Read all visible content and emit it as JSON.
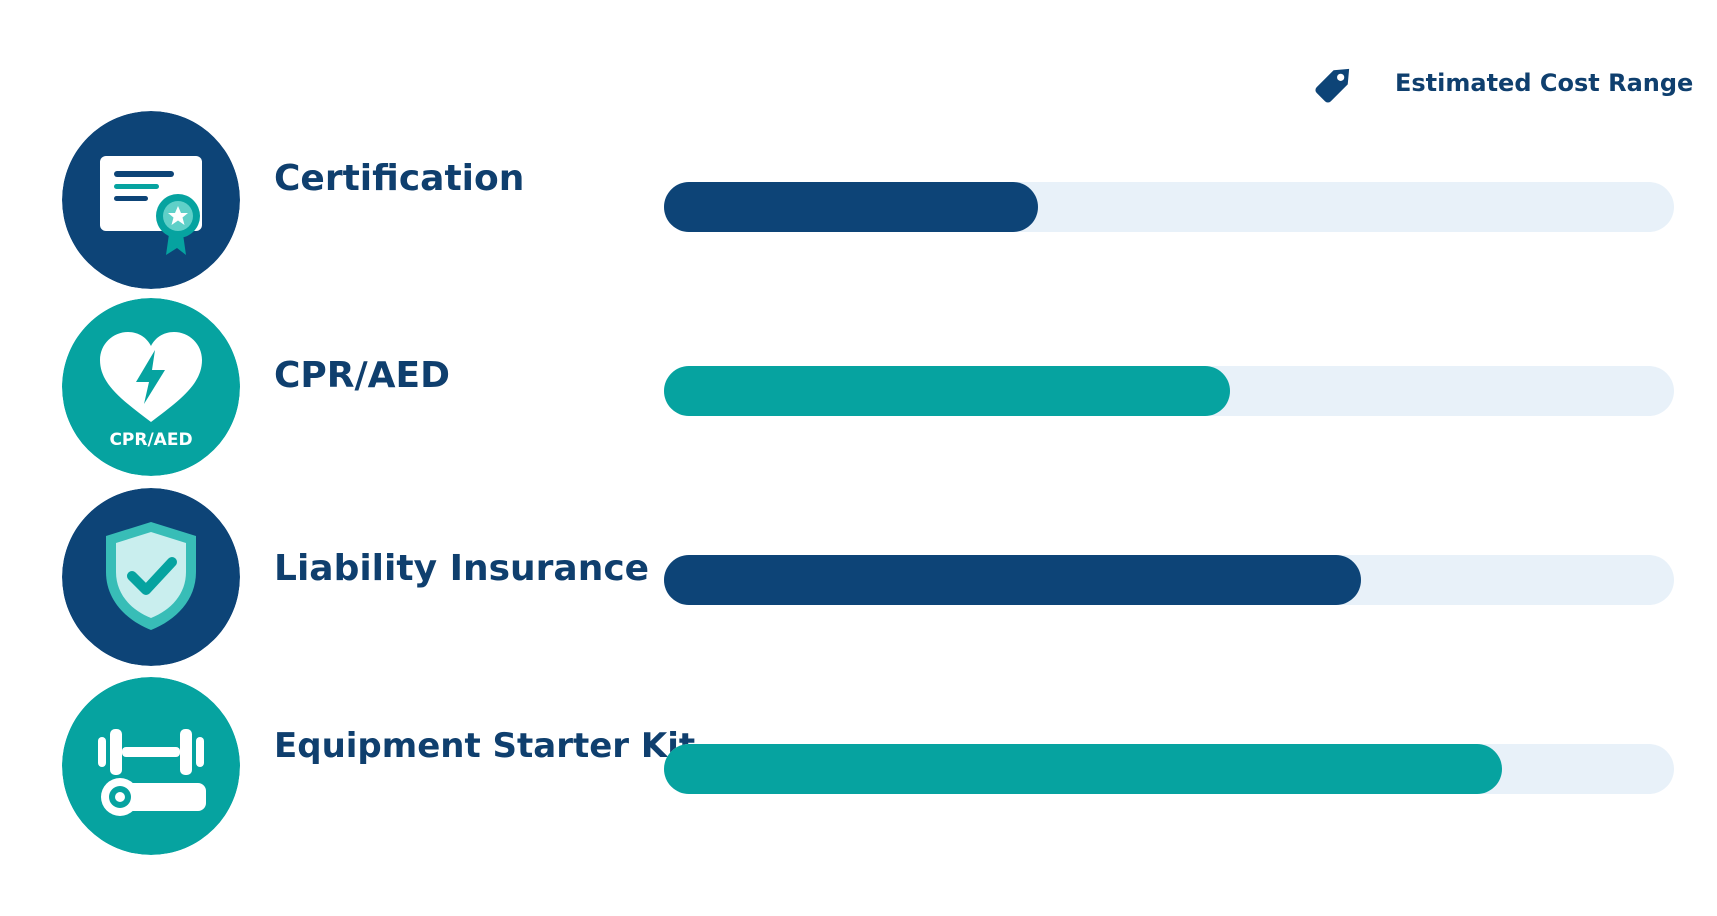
{
  "legend": {
    "label": "Estimated Cost Range",
    "icon": "price-tag-icon"
  },
  "chart_data": {
    "type": "bar",
    "orientation": "horizontal",
    "categories": [
      "Certification",
      "CPR/AED",
      "Liability Insurance",
      "Equipment Starter Kit"
    ],
    "values": [
      0.37,
      0.56,
      0.69,
      0.83
    ],
    "value_scale": "fraction of full bar",
    "grid": false,
    "legend_position": "top-right"
  },
  "items": [
    {
      "label": "Certification",
      "icon": "certificate-icon",
      "fraction": 0.37,
      "color": "#0d4477"
    },
    {
      "label": "CPR/AED",
      "icon": "heart-defibrillator-icon",
      "icon_text": "CPR/AED",
      "fraction": 0.56,
      "color": "#06a3a0"
    },
    {
      "label": "Liability Insurance",
      "icon": "shield-check-icon",
      "fraction": 0.69,
      "color": "#0d4477"
    },
    {
      "label": "Equipment Starter Kit",
      "icon": "dumbbell-mat-icon",
      "fraction": 0.83,
      "color": "#06a3a0"
    }
  ],
  "colors": {
    "navy": "#0d4477",
    "teal": "#06a3a0",
    "track": "#e8f1f9",
    "text": "#0f3f6e"
  }
}
